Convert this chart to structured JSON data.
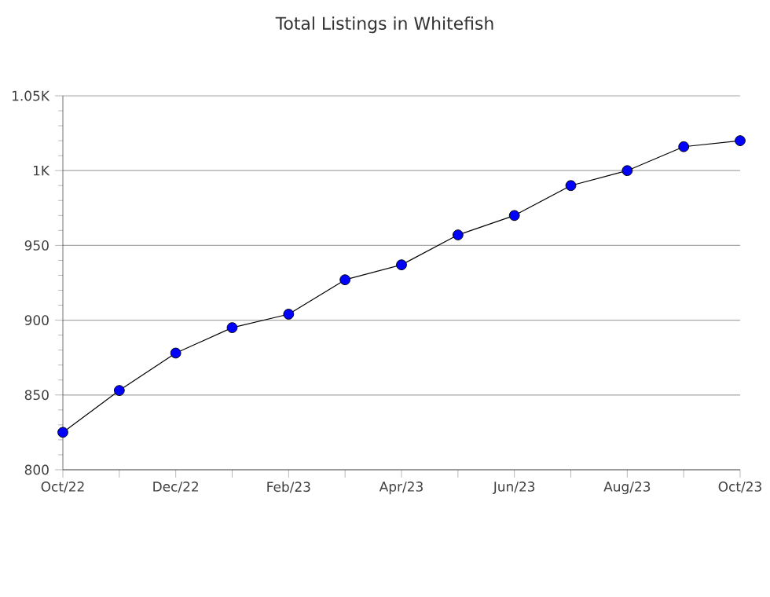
{
  "chart_data": {
    "type": "line",
    "title": "Total Listings in Whitefish",
    "categories": [
      "Oct/22",
      null,
      "Dec/22",
      null,
      "Feb/23",
      null,
      "Apr/23",
      null,
      "Jun/23",
      null,
      "Aug/23",
      null,
      "Oct/23"
    ],
    "series": [
      {
        "color": "#0000ff",
        "values": [
          825,
          853,
          878,
          895,
          904,
          927,
          937,
          957,
          970,
          990,
          1000,
          1016,
          1020
        ]
      }
    ],
    "ylim": [
      800,
      1050
    ],
    "yticks": [
      800,
      850,
      900,
      950,
      {
        "value": 1000,
        "label": "1K"
      },
      {
        "value": 1050,
        "label": "1.05K"
      }
    ],
    "grid": "y",
    "marker": "circle",
    "line_style": "solid"
  }
}
